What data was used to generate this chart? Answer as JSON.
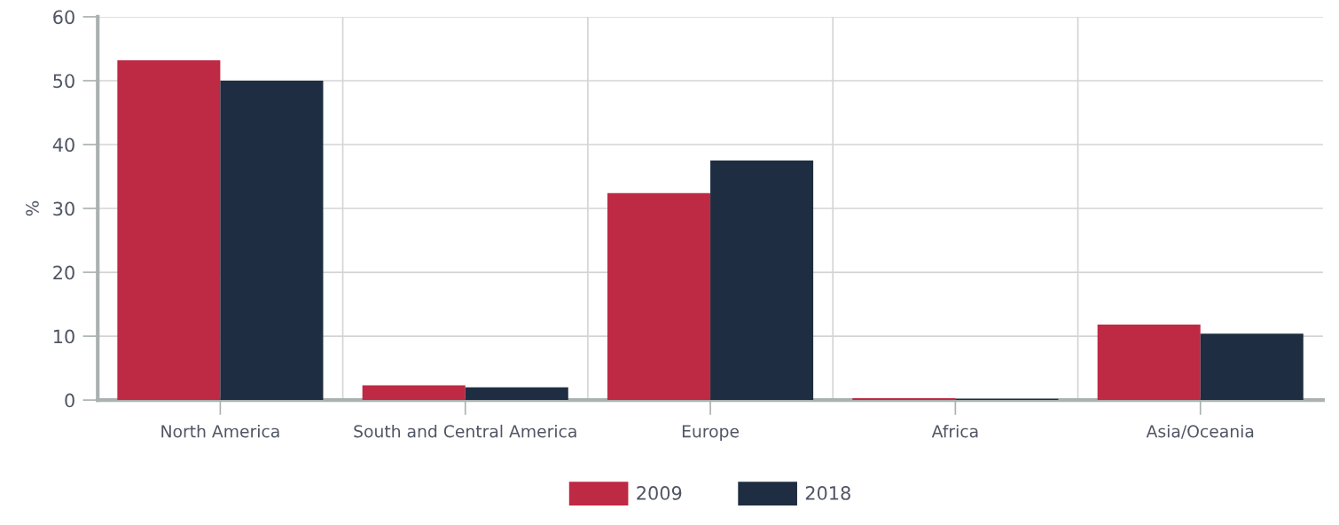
{
  "chart_data": {
    "type": "bar",
    "categories": [
      "North America",
      "South and Central America",
      "Europe",
      "Africa",
      "Asia/Oceania"
    ],
    "series": [
      {
        "name": "2009",
        "color": "#be2944",
        "values": [
          53.2,
          2.3,
          32.4,
          0.3,
          11.8
        ]
      },
      {
        "name": "2018",
        "color": "#1e2d41",
        "values": [
          50.0,
          2.0,
          37.5,
          0.2,
          10.4
        ]
      }
    ],
    "ylabel": "%",
    "ylim": [
      0,
      60
    ],
    "yticks": [
      0,
      10,
      20,
      30,
      40,
      50,
      60
    ],
    "grid": true,
    "legend": "bottom"
  }
}
